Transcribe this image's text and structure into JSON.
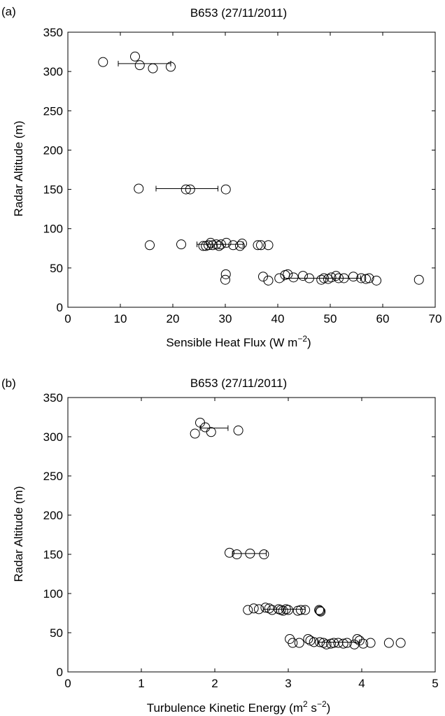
{
  "chart_data": [
    {
      "type": "scatter",
      "panel_label": "(a)",
      "title": "B653 (27/11/2011)",
      "xlabel": "Sensible Heat Flux (W m",
      "xlabel_sup": "−2",
      "xlabel_end": ")",
      "ylabel": "Radar Altitude (m)",
      "xlim": [
        0,
        70
      ],
      "ylim": [
        0,
        350
      ],
      "xticks": [
        0,
        10,
        20,
        30,
        40,
        50,
        60,
        70
      ],
      "yticks": [
        0,
        50,
        100,
        150,
        200,
        250,
        300,
        350
      ],
      "grid": false,
      "marker": "open-circle",
      "points": [
        [
          6.7,
          312
        ],
        [
          12.8,
          319
        ],
        [
          13.7,
          308
        ],
        [
          16.2,
          304
        ],
        [
          19.6,
          306
        ],
        [
          13.5,
          151
        ],
        [
          22.5,
          150
        ],
        [
          23.3,
          150
        ],
        [
          30.1,
          150
        ],
        [
          15.6,
          79
        ],
        [
          21.6,
          80
        ],
        [
          25.8,
          78
        ],
        [
          26.3,
          78
        ],
        [
          26.8,
          79
        ],
        [
          27.2,
          82
        ],
        [
          27.6,
          79
        ],
        [
          28.3,
          80
        ],
        [
          28.8,
          78
        ],
        [
          29.2,
          80
        ],
        [
          30.2,
          82
        ],
        [
          31.5,
          79
        ],
        [
          32.8,
          78
        ],
        [
          33.2,
          81
        ],
        [
          36.2,
          79
        ],
        [
          36.8,
          79
        ],
        [
          38.2,
          79
        ],
        [
          30.1,
          42
        ],
        [
          30.0,
          35
        ],
        [
          37.2,
          39
        ],
        [
          38.2,
          34
        ],
        [
          40.3,
          37
        ],
        [
          41.4,
          41
        ],
        [
          41.9,
          42
        ],
        [
          43.0,
          38
        ],
        [
          44.8,
          40
        ],
        [
          46.0,
          37
        ],
        [
          48.3,
          35
        ],
        [
          48.8,
          37
        ],
        [
          49.6,
          36
        ],
        [
          50.2,
          38
        ],
        [
          51.1,
          40
        ],
        [
          51.6,
          37
        ],
        [
          52.6,
          37
        ],
        [
          54.4,
          39
        ],
        [
          55.9,
          37
        ],
        [
          56.8,
          36
        ],
        [
          57.4,
          37
        ],
        [
          58.8,
          34
        ],
        [
          66.9,
          35
        ]
      ],
      "error_bars": [
        {
          "y": 310,
          "xmin": 9.6,
          "xmax": 19.6
        },
        {
          "y": 151,
          "xmin": 16.8,
          "xmax": 28.6
        },
        {
          "y": 80,
          "xmin": 24.6,
          "xmax": 33.4
        },
        {
          "y": 37,
          "xmin": 41.2,
          "xmax": 55.8
        }
      ]
    },
    {
      "type": "scatter",
      "panel_label": "(b)",
      "title": "B653 (27/11/2011)",
      "xlabel": "Turbulence Kinetic Energy (m",
      "xlabel_sup": "2",
      "xlabel_mid": " s",
      "xlabel_sup2": "−2",
      "xlabel_end": ")",
      "ylabel": "Radar Altitude (m)",
      "xlim": [
        0,
        5
      ],
      "ylim": [
        0,
        350
      ],
      "xticks": [
        0,
        1,
        2,
        3,
        4,
        5
      ],
      "yticks": [
        0,
        50,
        100,
        150,
        200,
        250,
        300,
        350
      ],
      "grid": false,
      "marker": "open-circle",
      "points": [
        [
          1.73,
          304
        ],
        [
          1.8,
          318
        ],
        [
          1.87,
          312
        ],
        [
          1.95,
          306
        ],
        [
          2.32,
          308
        ],
        [
          2.2,
          152
        ],
        [
          2.3,
          150
        ],
        [
          2.48,
          151
        ],
        [
          2.67,
          150
        ],
        [
          2.45,
          79
        ],
        [
          2.53,
          81
        ],
        [
          2.6,
          80
        ],
        [
          2.69,
          82
        ],
        [
          2.74,
          81
        ],
        [
          2.78,
          79
        ],
        [
          2.87,
          80
        ],
        [
          2.9,
          79
        ],
        [
          2.93,
          78
        ],
        [
          2.97,
          80
        ],
        [
          3.0,
          79
        ],
        [
          3.13,
          78
        ],
        [
          3.17,
          79
        ],
        [
          3.23,
          79
        ],
        [
          3.42,
          79
        ],
        [
          3.43,
          78
        ],
        [
          3.44,
          77
        ],
        [
          3.02,
          42
        ],
        [
          3.06,
          37
        ],
        [
          3.15,
          37
        ],
        [
          3.27,
          42
        ],
        [
          3.3,
          40
        ],
        [
          3.35,
          38
        ],
        [
          3.43,
          38
        ],
        [
          3.48,
          37
        ],
        [
          3.52,
          35
        ],
        [
          3.58,
          36
        ],
        [
          3.62,
          37
        ],
        [
          3.68,
          37
        ],
        [
          3.75,
          36
        ],
        [
          3.8,
          37
        ],
        [
          3.9,
          35
        ],
        [
          3.94,
          42
        ],
        [
          3.97,
          40
        ],
        [
          4.02,
          36
        ],
        [
          4.12,
          37
        ],
        [
          4.37,
          37
        ],
        [
          4.53,
          37
        ]
      ],
      "error_bars": [
        {
          "y": 311,
          "xmin": 1.8,
          "xmax": 2.18
        },
        {
          "y": 151,
          "xmin": 2.24,
          "xmax": 2.7
        },
        {
          "y": 80,
          "xmin": 2.66,
          "xmax": 3.23
        },
        {
          "y": 38,
          "xmin": 3.4,
          "xmax": 3.97
        }
      ]
    }
  ]
}
